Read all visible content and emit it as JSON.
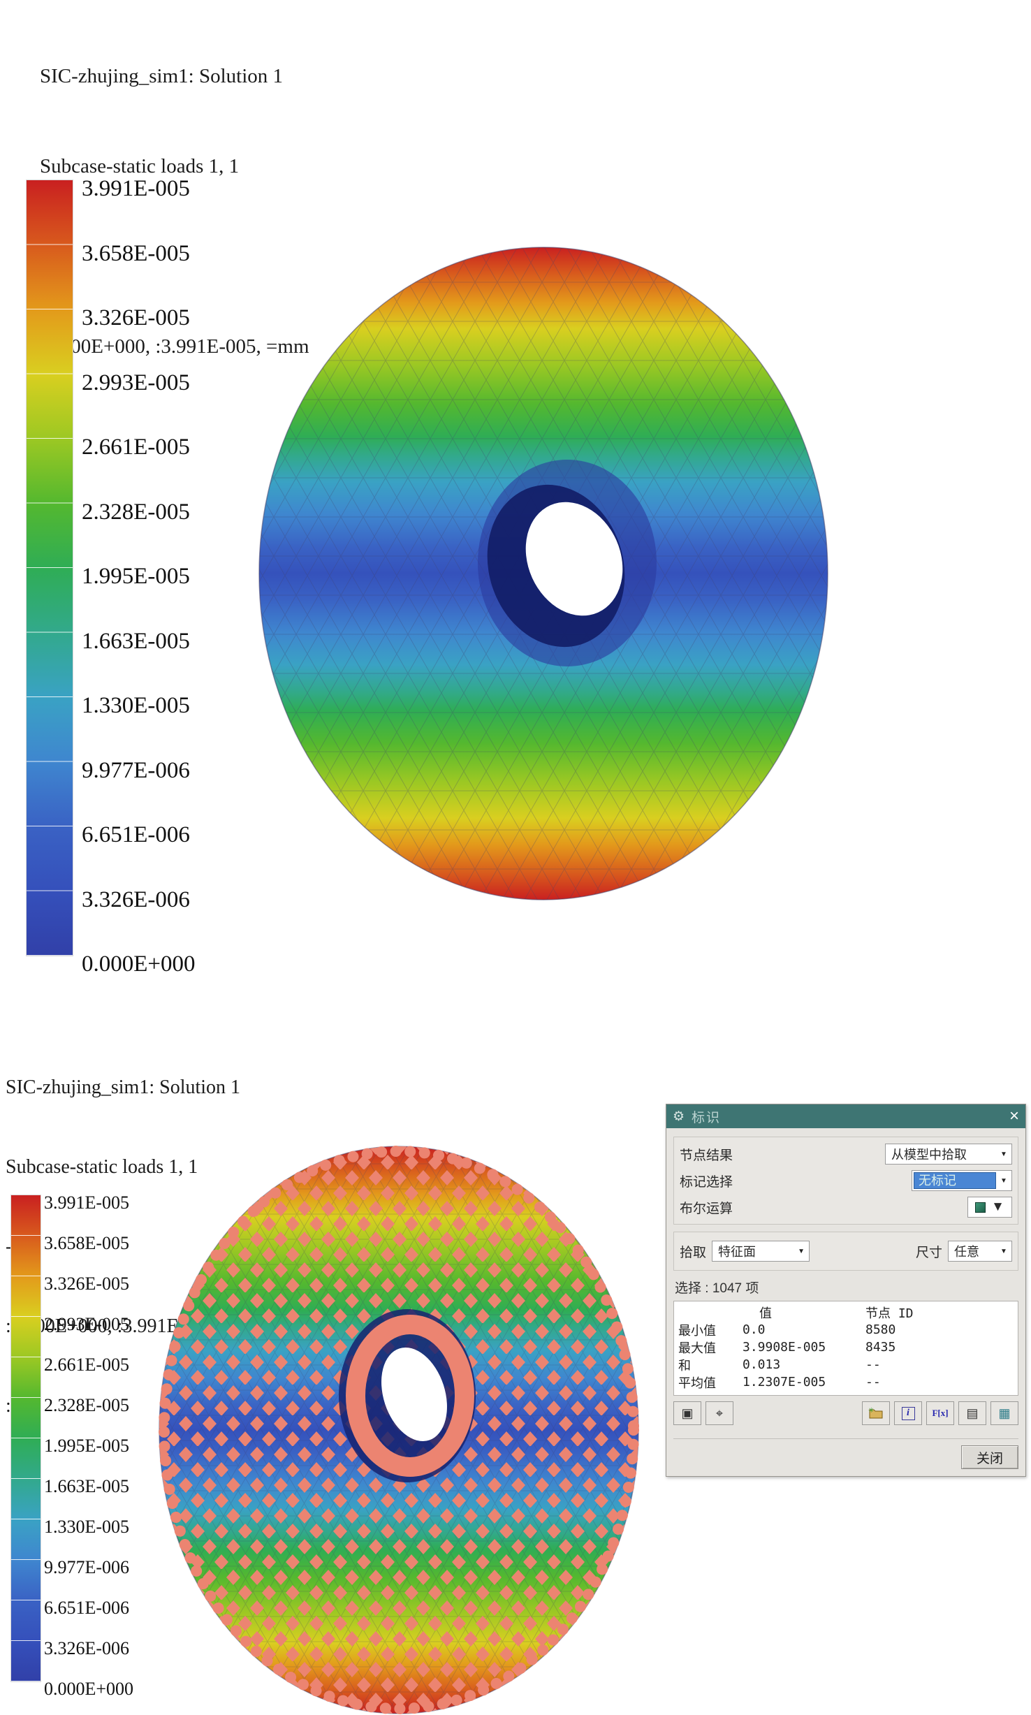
{
  "header": {
    "lines": [
      "SIC-zhujing_sim1: Solution 1",
      "Subcase-static loads 1, 1",
      "-,",
      ":0.000E+000, :3.991E-005, =mm",
      ":-"
    ]
  },
  "legend": {
    "labels": [
      "3.991E-005",
      "3.658E-005",
      "3.326E-005",
      "2.993E-005",
      "2.661E-005",
      "2.328E-005",
      "1.995E-005",
      "1.663E-005",
      "1.330E-005",
      "9.977E-006",
      "6.651E-006",
      "3.326E-006",
      "0.000E+000"
    ],
    "colors": [
      "#c92020",
      "#d85a1d",
      "#e39a1b",
      "#d9cf20",
      "#9cc823",
      "#54b82f",
      "#2fad55",
      "#32a98c",
      "#3aa2c4",
      "#3f86cf",
      "#3a62c4",
      "#3550bb",
      "#3140a8"
    ]
  },
  "viewport": {
    "node_marker_color": "#ec8471"
  },
  "dialog": {
    "title": "标识",
    "icons": {
      "gear": "⚙",
      "close": "×",
      "dropdown_arrow": "▼",
      "document": "▤",
      "table": "▦",
      "window_check": "▣",
      "crosshair": "⌖",
      "sparkle": "✳",
      "info": "i"
    },
    "accent": {
      "titlebar": "#3e7573",
      "highlight": "#4a86d4"
    },
    "rows": {
      "node_result_label": "节点结果",
      "node_result_value": "从模型中拾取",
      "mark_select_label": "标记选择",
      "mark_select_value": "无标记",
      "boolean_label": "布尔运算"
    },
    "pick": {
      "label": "拾取",
      "value": "特征面",
      "size_label": "尺寸",
      "size_value": "任意"
    },
    "selection_text": "选择 : 1047 项",
    "table": {
      "col_value": "值",
      "col_node": "节点 ID",
      "rows": [
        {
          "name": "最小值",
          "value": "0.0",
          "node": "8580"
        },
        {
          "name": "最大值",
          "value": "3.9908E-005",
          "node": "8435"
        },
        {
          "name": "和",
          "value": "0.013",
          "node": "--"
        },
        {
          "name": "平均值",
          "value": "1.2307E-005",
          "node": "--"
        }
      ]
    },
    "fx_label": "F[x]",
    "close_button": "关闭"
  }
}
